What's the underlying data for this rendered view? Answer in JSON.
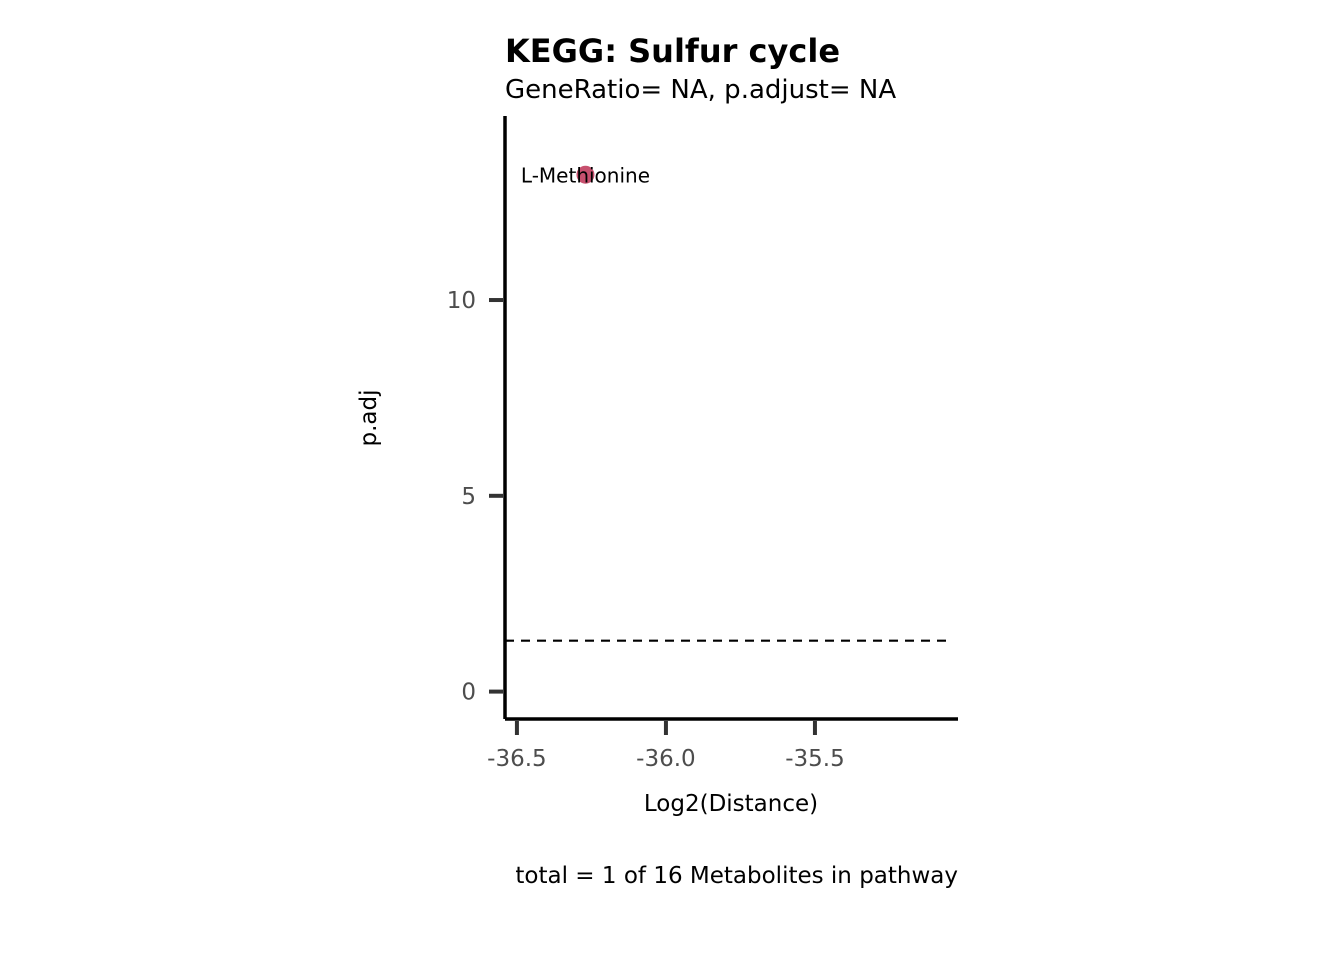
{
  "chart_data": {
    "type": "scatter",
    "title": "KEGG: Sulfur cycle",
    "subtitle": "GeneRatio= NA, p.adjust= NA",
    "xlabel": "Log2(Distance)",
    "ylabel": "p.adj",
    "caption": "total = 1 of 16 Metabolites in pathway",
    "xlim": [
      -36.54,
      -35.02
    ],
    "ylim": [
      -0.7,
      14.7
    ],
    "x_ticks": [
      -36.5,
      -36.0,
      -35.5
    ],
    "x_tick_labels": [
      "-36.5",
      "-36.0",
      "-35.5"
    ],
    "y_ticks": [
      0,
      5,
      10
    ],
    "y_tick_labels": [
      "0",
      "5",
      "10"
    ],
    "threshold_line": {
      "y": 1.3,
      "style": "dashed",
      "color": "#000000"
    },
    "points": [
      {
        "label": "L-Methionine",
        "x": -36.27,
        "y": 13.2,
        "color": "#c7506e"
      }
    ],
    "grid": false,
    "legend": "none"
  }
}
